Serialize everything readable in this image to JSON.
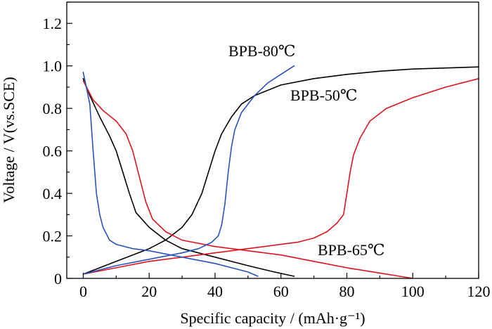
{
  "chart_data": {
    "type": "line",
    "xlabel": "Specific capacity / (mAh·g⁻¹)",
    "ylabel": "Voltage / V(vs.SCE)",
    "xlim": [
      -5,
      120
    ],
    "ylim": [
      0,
      1.3
    ],
    "xticks": [
      "0",
      "20",
      "40",
      "60",
      "80",
      "100",
      "120"
    ],
    "yticks": [
      "0",
      "0.2",
      "0.4",
      "0.6",
      "0.8",
      "1.0",
      "1.2"
    ],
    "grid": false,
    "colors": {
      "black": "#000000",
      "red": "#e0141e",
      "blue": "#2a52be"
    },
    "annotations": [
      {
        "id": "bpb-80",
        "text": "BPB-80℃",
        "color": "blue"
      },
      {
        "id": "bpb-50",
        "text": "BPB-50℃",
        "color": "black"
      },
      {
        "id": "bpb-65",
        "text": "BPB-65℃",
        "color": "red"
      }
    ],
    "series": [
      {
        "id": "bpb-50-charge",
        "color": "black",
        "points": [
          [
            0,
            0.02
          ],
          [
            5,
            0.05
          ],
          [
            10,
            0.08
          ],
          [
            15,
            0.11
          ],
          [
            20,
            0.14
          ],
          [
            25,
            0.18
          ],
          [
            30,
            0.24
          ],
          [
            33,
            0.3
          ],
          [
            36,
            0.4
          ],
          [
            38,
            0.5
          ],
          [
            40,
            0.6
          ],
          [
            42,
            0.68
          ],
          [
            45,
            0.76
          ],
          [
            48,
            0.82
          ],
          [
            52,
            0.86
          ],
          [
            60,
            0.91
          ],
          [
            70,
            0.94
          ],
          [
            80,
            0.96
          ],
          [
            90,
            0.975
          ],
          [
            100,
            0.985
          ],
          [
            110,
            0.99
          ],
          [
            120,
            0.995
          ]
        ]
      },
      {
        "id": "bpb-50-discharge",
        "color": "black",
        "points": [
          [
            0,
            0.94
          ],
          [
            2,
            0.86
          ],
          [
            5,
            0.76
          ],
          [
            8,
            0.67
          ],
          [
            10,
            0.6
          ],
          [
            12,
            0.5
          ],
          [
            14,
            0.4
          ],
          [
            16,
            0.31
          ],
          [
            20,
            0.24
          ],
          [
            25,
            0.18
          ],
          [
            30,
            0.14
          ],
          [
            40,
            0.1
          ],
          [
            50,
            0.06
          ],
          [
            58,
            0.03
          ],
          [
            64,
            0.01
          ]
        ]
      },
      {
        "id": "bpb-65-charge",
        "color": "red",
        "points": [
          [
            0,
            0.02
          ],
          [
            10,
            0.05
          ],
          [
            20,
            0.08
          ],
          [
            30,
            0.1
          ],
          [
            40,
            0.12
          ],
          [
            50,
            0.14
          ],
          [
            60,
            0.16
          ],
          [
            65,
            0.17
          ],
          [
            70,
            0.19
          ],
          [
            74,
            0.22
          ],
          [
            77,
            0.26
          ],
          [
            79,
            0.3
          ],
          [
            80,
            0.4
          ],
          [
            81,
            0.5
          ],
          [
            82,
            0.58
          ],
          [
            84,
            0.66
          ],
          [
            87,
            0.74
          ],
          [
            92,
            0.8
          ],
          [
            100,
            0.85
          ],
          [
            110,
            0.9
          ],
          [
            120,
            0.94
          ]
        ]
      },
      {
        "id": "bpb-65-discharge",
        "color": "red",
        "points": [
          [
            0,
            0.93
          ],
          [
            3,
            0.84
          ],
          [
            6,
            0.79
          ],
          [
            10,
            0.74
          ],
          [
            13,
            0.68
          ],
          [
            15,
            0.6
          ],
          [
            17,
            0.48
          ],
          [
            19,
            0.36
          ],
          [
            21,
            0.28
          ],
          [
            25,
            0.22
          ],
          [
            30,
            0.18
          ],
          [
            40,
            0.15
          ],
          [
            50,
            0.13
          ],
          [
            60,
            0.11
          ],
          [
            70,
            0.08
          ],
          [
            80,
            0.05
          ],
          [
            90,
            0.025
          ],
          [
            100,
            0
          ]
        ]
      },
      {
        "id": "bpb-80-charge",
        "color": "blue",
        "points": [
          [
            0,
            0.02
          ],
          [
            5,
            0.04
          ],
          [
            10,
            0.06
          ],
          [
            20,
            0.09
          ],
          [
            30,
            0.12
          ],
          [
            35,
            0.14
          ],
          [
            39,
            0.17
          ],
          [
            41,
            0.2
          ],
          [
            42,
            0.25
          ],
          [
            43,
            0.35
          ],
          [
            44,
            0.5
          ],
          [
            45,
            0.62
          ],
          [
            46,
            0.7
          ],
          [
            48,
            0.78
          ],
          [
            52,
            0.86
          ],
          [
            56,
            0.92
          ],
          [
            60,
            0.96
          ],
          [
            64,
            1.0
          ]
        ]
      },
      {
        "id": "bpb-80-discharge",
        "color": "blue",
        "points": [
          [
            0,
            0.97
          ],
          [
            2,
            0.82
          ],
          [
            3,
            0.6
          ],
          [
            4,
            0.4
          ],
          [
            5,
            0.3
          ],
          [
            6,
            0.24
          ],
          [
            8,
            0.18
          ],
          [
            10,
            0.16
          ],
          [
            15,
            0.14
          ],
          [
            20,
            0.13
          ],
          [
            30,
            0.1
          ],
          [
            40,
            0.07
          ],
          [
            50,
            0.03
          ],
          [
            53,
            0.01
          ]
        ]
      }
    ]
  }
}
